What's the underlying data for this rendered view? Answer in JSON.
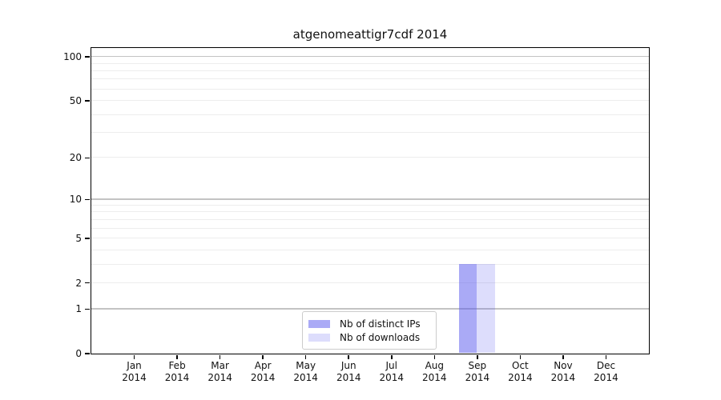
{
  "title": "atgenomeattigr7cdf 2014",
  "colors": {
    "background": "#ffffff",
    "axis": "#000000",
    "text": "#111111",
    "grid_major": "#c3c3c3",
    "grid_minor": "#ededed",
    "legend_border": "#cccccc",
    "bar_distinct_ips": "rgba(85,85,238,0.5)",
    "bar_downloads": "rgba(85,85,238,0.2)"
  },
  "chart_data": {
    "type": "bar",
    "title": "atgenomeattigr7cdf 2014",
    "xlabel": "",
    "ylabel": "",
    "categories": [
      "Jan",
      "Feb",
      "Mar",
      "Apr",
      "May",
      "Jun",
      "Jul",
      "Aug",
      "Sep",
      "Oct",
      "Nov",
      "Dec"
    ],
    "category_year": "2014",
    "series": [
      {
        "name": "Nb of distinct IPs",
        "color": "rgba(85,85,238,0.5)",
        "values": [
          0,
          0,
          0,
          0,
          0,
          0,
          0,
          0,
          3,
          0,
          0,
          0
        ]
      },
      {
        "name": "Nb of downloads",
        "color": "rgba(85,85,238,0.2)",
        "values": [
          0,
          0,
          0,
          0,
          0,
          0,
          0,
          0,
          3,
          0,
          0,
          0
        ]
      }
    ],
    "y_scale": "log1p",
    "ylim": [
      0,
      115
    ],
    "xlim": [
      0,
      13
    ],
    "y_tick_labels": [
      0,
      1,
      2,
      5,
      10,
      20,
      50,
      100
    ],
    "y_grid_major": [
      1,
      10,
      100
    ],
    "y_grid_minor": [
      2,
      3,
      4,
      5,
      6,
      7,
      8,
      9,
      20,
      30,
      40,
      50,
      60,
      70,
      80,
      90
    ],
    "grid": true,
    "legend_position": "lower-center-inside"
  }
}
